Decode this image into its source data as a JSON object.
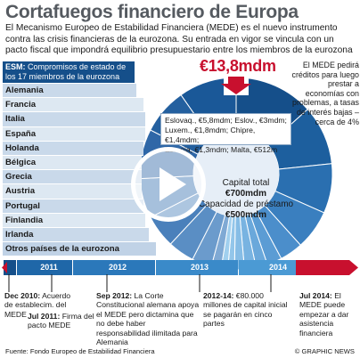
{
  "title": "Cortafuegos financiero de Europa",
  "intro": "El Mecanismo Europeo de Estabilidad Financiera (MEDE) es el nuevo instrumento contra las crisis financieras de la eurozona. Su entrada en vigor se vincula con un pacto fiscal que impondrá equilibrio presupuestario entre los miembros de la eurozona",
  "esm": {
    "label": "ESM:",
    "text": "Compromisos de estado de los 17 miembros de la eurozona"
  },
  "countries": [
    "Alemania",
    "Francia",
    "Italia",
    "España",
    "Holanda",
    "Bélgica",
    "Grecia",
    "Austria",
    "Portugal",
    "Finlandia",
    "Irlanda"
  ],
  "other_countries": "Otros países de la eurozona",
  "big_value": "€13,8mdm",
  "note_right": "El MEDE pedirá créditos para luego prestar a economías con problemas, a tasas de interés bajas – cerca de 4%",
  "callout": {
    "line1": "Eslovaq., €5,8mdm; Eslov., €3mdm;",
    "line2": "Luxem., €1,8mdm; Chipre, €1,4mdm;",
    "line3": "Estonia, €1,3mdm; Malta, €512m"
  },
  "center": {
    "capital_label": "Capital total",
    "capital_value": "€700mdm",
    "loan_label": "Capacidad de préstamo",
    "loan_value": "€500mdm"
  },
  "timeline": {
    "years": [
      "2011",
      "2012",
      "2013",
      "2014"
    ]
  },
  "events": {
    "dec2010": {
      "date": "Dec 2010:",
      "text": "Acuerdo de establecim. del MEDE"
    },
    "jul2011": {
      "date": "Jul 2011:",
      "text": "Firma del pacto MEDE"
    },
    "sep2012": {
      "date": "Sep 2012:",
      "text": "La Corte Constitucional alemana apoya el MEDE pero dictamina que no debe haber responsabilidad ilimitada para Alemania"
    },
    "2012_14": {
      "date": "2012-14:",
      "text": "€80.000 millones de capital inicial se pagarán en cinco partes"
    },
    "jul2014": {
      "date": "Jul 2014:",
      "text": "El MEDE puede empezar a dar asistencia financiera"
    }
  },
  "footer": {
    "source": "Fuente: Fondo Europeo de Estabilidad Financiera",
    "credit": "© GRAPHIC NEWS"
  },
  "colors": {
    "dark_blue": "#154f8a",
    "red": "#c8102e",
    "title_gray": "#555a60"
  },
  "overlay": {
    "icon": "play-icon"
  }
}
